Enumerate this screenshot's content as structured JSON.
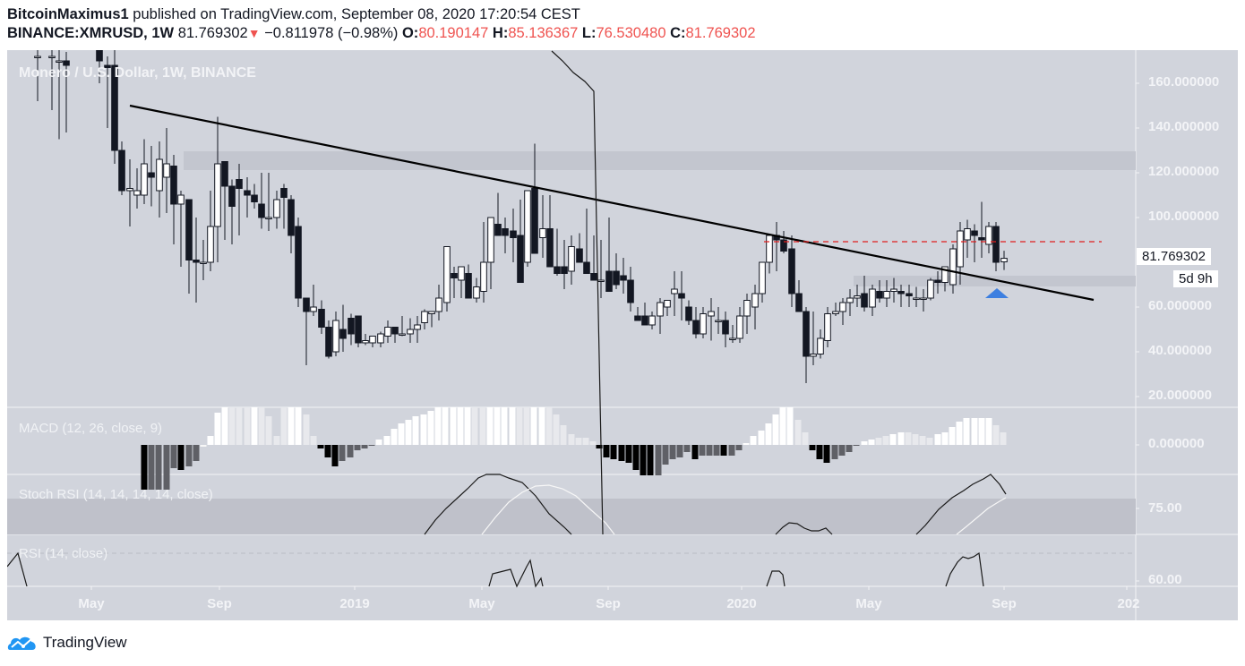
{
  "header": {
    "author": "BitcoinMaximus1",
    "published_text": " published on TradingView.com, September 08, 2020 17:20:54 CEST",
    "symbol": "BINANCE:XMRUSD, 1W",
    "last_price": "81.769302",
    "change_arrow": "▼",
    "change": "−0.811978 (−0.98%)",
    "open_label": "O:",
    "open": "80.190147",
    "high_label": "H:",
    "high": "85.136367",
    "low_label": "L:",
    "low": "76.530480",
    "close_label": "C:",
    "close": "81.769302"
  },
  "main_pane": {
    "title": "Monero / U.S. Dollar, 1W, BINANCE",
    "price_axis": [
      "160.000000",
      "140.000000",
      "120.000000",
      "100.000000",
      "60.000000",
      "40.000000",
      "20.000000"
    ],
    "current_price_tag": "81.769302",
    "countdown_tag": "5d 9h"
  },
  "macd_pane": {
    "title": "MACD (12, 26, close, 9)",
    "axis": [
      "0.000000"
    ]
  },
  "stoch_pane": {
    "title": "Stoch RSI (14, 14, 14, 14, close)",
    "axis": [
      "75.00"
    ]
  },
  "rsi_pane": {
    "title": "RSI (14, close)",
    "axis": [
      "60.00"
    ]
  },
  "time_axis": [
    "May",
    "Sep",
    "2019",
    "May",
    "Sep",
    "2020",
    "May",
    "Sep",
    "202"
  ],
  "footer": {
    "brand": "TradingView"
  },
  "colors": {
    "background": "#d1d4dc",
    "bull_candle": "#ffffff",
    "bear_candle": "#131722",
    "trendline": "#000000",
    "resistance_dash": "#e01e1e",
    "support_marker": "#3d7fe0",
    "change_down": "#ef5350"
  },
  "chart_data": {
    "type": "candlestick",
    "title": "Monero / U.S. Dollar, 1W, BINANCE",
    "symbol": "BINANCE:XMRUSD",
    "interval": "1W",
    "ylim": [
      20,
      170
    ],
    "y_ticks": [
      20,
      40,
      60,
      80,
      100,
      120,
      140,
      160
    ],
    "x_ticks": [
      "May",
      "Sep",
      "2019",
      "May",
      "Sep",
      "2020",
      "May",
      "Sep",
      "202"
    ],
    "last_ohlc": {
      "open": 80.190147,
      "high": 85.136367,
      "low": 76.53048,
      "close": 81.769302
    },
    "annotations": [
      {
        "type": "trendline",
        "description": "descending resistance line",
        "from": {
          "x": "Jun 2018",
          "y": 150
        },
        "to": {
          "x": "Nov 2020",
          "y": 63
        }
      },
      {
        "type": "horizontal_zone",
        "description": "resistance zone",
        "y_range": [
          121,
          129
        ]
      },
      {
        "type": "horizontal_zone",
        "description": "support zone",
        "y_range": [
          69,
          74
        ]
      },
      {
        "type": "horizontal_dashed_line",
        "color": "red",
        "y": 89
      },
      {
        "type": "arrow_up",
        "color": "blue",
        "x": "Sep 2020",
        "y": 66
      }
    ],
    "candles_approx": [
      {
        "t": "2018-02",
        "o": 168,
        "h": 180,
        "l": 158,
        "c": 170
      },
      {
        "t": "2018-03",
        "o": 175,
        "h": 180,
        "l": 150,
        "c": 170
      },
      {
        "t": "2018-04",
        "o": 170,
        "h": 175,
        "l": 130,
        "c": 160
      },
      {
        "t": "2018-05",
        "o": 165,
        "h": 175,
        "l": 140,
        "c": 168
      },
      {
        "t": "2018-05",
        "o": 168,
        "h": 175,
        "l": 120,
        "c": 130
      },
      {
        "t": "2018-06",
        "o": 130,
        "h": 135,
        "l": 105,
        "c": 112
      },
      {
        "t": "2018-07",
        "o": 114,
        "h": 125,
        "l": 112,
        "c": 130
      },
      {
        "t": "2018-08",
        "o": 130,
        "h": 150,
        "l": 110,
        "c": 122
      },
      {
        "t": "2018-09",
        "o": 122,
        "h": 143,
        "l": 95,
        "c": 97
      },
      {
        "t": "2018-10",
        "o": 106,
        "h": 133,
        "l": 90,
        "c": 128
      },
      {
        "t": "2018-11",
        "o": 116,
        "h": 120,
        "l": 82,
        "c": 104
      },
      {
        "t": "2018-12",
        "o": 65,
        "h": 70,
        "l": 36,
        "c": 40
      },
      {
        "t": "2019-01",
        "o": 40,
        "h": 56,
        "l": 40,
        "c": 55
      },
      {
        "t": "2019-02",
        "o": 45,
        "h": 50,
        "l": 42,
        "c": 47
      },
      {
        "t": "2019-04",
        "o": 60,
        "h": 72,
        "l": 57,
        "c": 70
      },
      {
        "t": "2019-05",
        "o": 70,
        "h": 96,
        "l": 66,
        "c": 92
      },
      {
        "t": "2019-06",
        "o": 78,
        "h": 117,
        "l": 75,
        "c": 115
      },
      {
        "t": "2019-06",
        "o": 115,
        "h": 133,
        "l": 80,
        "c": 86
      },
      {
        "t": "2019-07",
        "o": 90,
        "h": 102,
        "l": 72,
        "c": 78
      },
      {
        "t": "2019-09",
        "o": 73,
        "h": 80,
        "l": 68,
        "c": 75
      },
      {
        "t": "2019-10",
        "o": 55,
        "h": 63,
        "l": 48,
        "c": 59
      },
      {
        "t": "2019-12",
        "o": 50,
        "h": 60,
        "l": 42,
        "c": 57
      },
      {
        "t": "2020-01",
        "o": 68,
        "h": 90,
        "l": 63,
        "c": 88
      },
      {
        "t": "2020-02",
        "o": 89,
        "h": 100,
        "l": 70,
        "c": 89
      },
      {
        "t": "2020-03",
        "o": 86,
        "h": 88,
        "l": 60,
        "c": 64
      },
      {
        "t": "2020-03",
        "o": 55,
        "h": 60,
        "l": 26,
        "c": 38
      },
      {
        "t": "2020-04",
        "o": 38,
        "h": 58,
        "l": 34,
        "c": 56
      },
      {
        "t": "2020-05",
        "o": 60,
        "h": 72,
        "l": 55,
        "c": 68
      },
      {
        "t": "2020-07",
        "o": 64,
        "h": 72,
        "l": 62,
        "c": 70
      },
      {
        "t": "2020-07",
        "o": 70,
        "h": 88,
        "l": 69,
        "c": 86
      },
      {
        "t": "2020-08",
        "o": 86,
        "h": 107,
        "l": 82,
        "c": 95
      },
      {
        "t": "2020-08",
        "o": 96,
        "h": 98,
        "l": 75,
        "c": 80
      },
      {
        "t": "2020-09",
        "o": 80.19,
        "h": 85.14,
        "l": 76.53,
        "c": 81.77
      }
    ],
    "indicators": {
      "macd": {
        "params": "12, 26, close, 9",
        "zero_line": 0,
        "phases": [
          "negative mid-2018",
          "positive Sep-Nov 2018",
          "negative Dec 2018",
          "positive Feb-Aug 2019",
          "negative Sep-Dec 2019",
          "positive Jan-Mar 2020",
          "negative Mar-Apr 2020",
          "positive May-Sep 2020"
        ]
      },
      "stoch_rsi": {
        "params": "14, 14, 14, 14, close",
        "level": 75.0
      },
      "rsi": {
        "params": "14, close",
        "level": 60.0,
        "last_peak": "Aug 2020 ~65"
      }
    }
  }
}
